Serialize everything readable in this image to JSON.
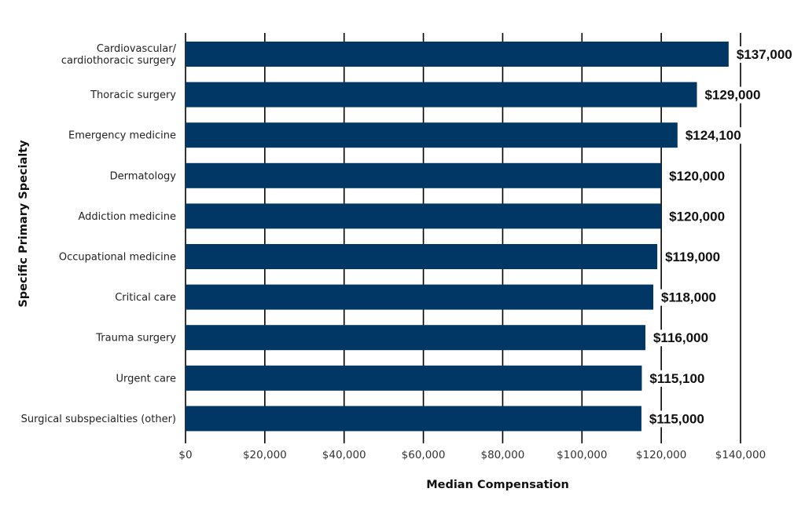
{
  "chart_data": {
    "type": "bar",
    "orientation": "horizontal",
    "categories": [
      "Cardiovascular/\ncardiothoracic surgery",
      "Thoracic surgery",
      "Emergency medicine",
      "Dermatology",
      "Addiction medicine",
      "Occupational medicine",
      "Critical care",
      "Trauma surgery",
      "Urgent care",
      "Surgical subspecialties (other)"
    ],
    "values": [
      137000,
      129000,
      124100,
      120000,
      120000,
      119000,
      118000,
      116000,
      115100,
      115000
    ],
    "value_labels": [
      "$137,000",
      "$129,000",
      "$124,100",
      "$120,000",
      "$120,000",
      "$119,000",
      "$118,000",
      "$116,000",
      "$115,100",
      "$115,000"
    ],
    "xticks": [
      0,
      20000,
      40000,
      60000,
      80000,
      100000,
      120000,
      140000
    ],
    "xtick_labels": [
      "$0",
      "$20,000",
      "$40,000",
      "$60,000",
      "$80,000",
      "$100,000",
      "$120,000",
      "$140,000"
    ],
    "xlim": [
      0,
      140000
    ],
    "xlabel": "Median Compensation",
    "ylabel": "Specific Primary Specialty",
    "grid": "vertical",
    "legend": "none",
    "bar_color": "#003764",
    "grid_color": "#000000"
  }
}
